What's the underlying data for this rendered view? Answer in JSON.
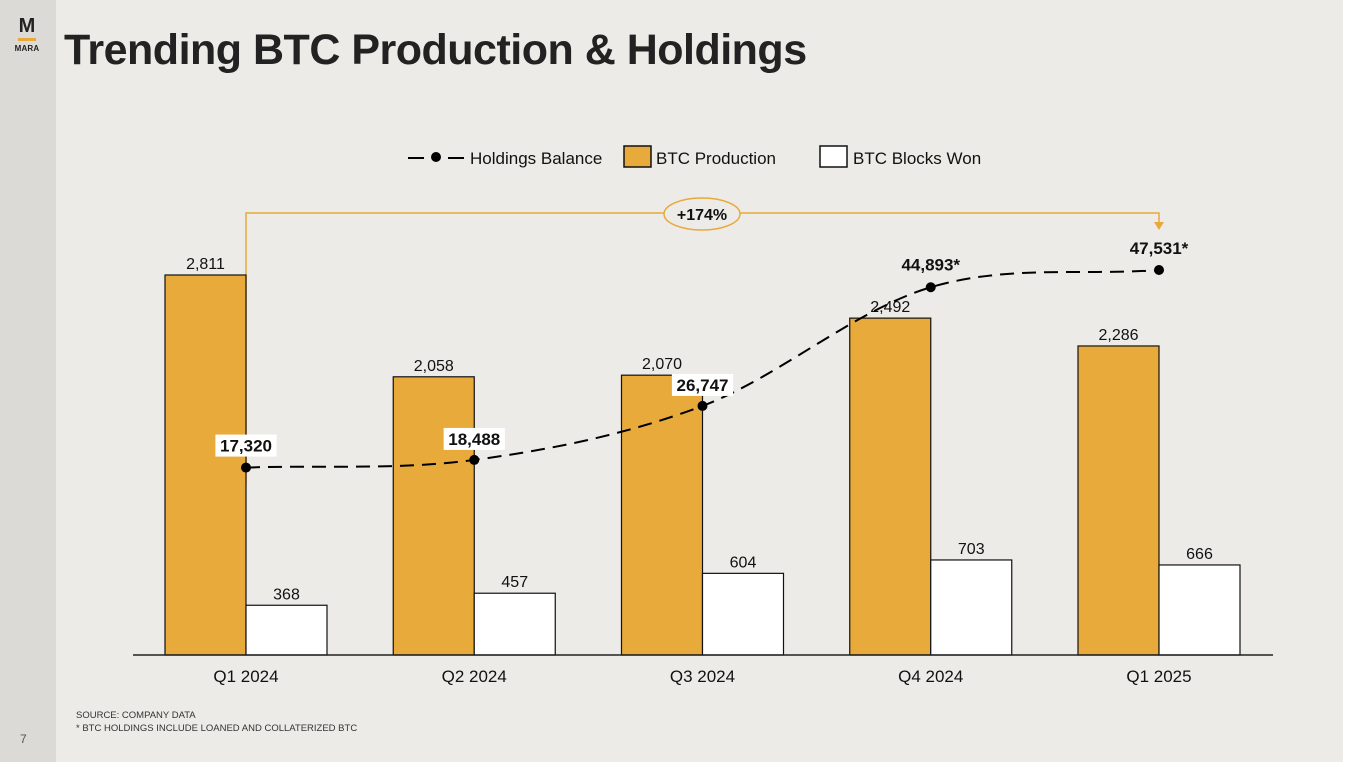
{
  "brand": {
    "logo_letter": "M",
    "logo_text": "MARA"
  },
  "page": {
    "title": "Trending BTC Production & Holdings",
    "number": "7"
  },
  "footnotes": {
    "source": "SOURCE: COMPANY DATA",
    "note": "* BTC HOLDINGS INCLUDE LOANED AND COLLATERIZED BTC"
  },
  "colors": {
    "production": "#e8ab3b",
    "blocks": "#ffffff",
    "line": "#000000",
    "accent": "#e8a93a"
  },
  "chart_data": {
    "type": "bar",
    "title": "Trending BTC Production & Holdings",
    "categories": [
      "Q1 2024",
      "Q2 2024",
      "Q3 2024",
      "Q4 2024",
      "Q1 2025"
    ],
    "series": [
      {
        "name": "BTC Production",
        "type": "bar",
        "values": [
          2811,
          2058,
          2070,
          2492,
          2286
        ],
        "labels": [
          "2,811",
          "2,058",
          "2,070",
          "2,492",
          "2,286"
        ]
      },
      {
        "name": "BTC Blocks Won",
        "type": "bar",
        "values": [
          368,
          457,
          604,
          703,
          666
        ],
        "labels": [
          "368",
          "457",
          "604",
          "703",
          "666"
        ]
      },
      {
        "name": "Holdings Balance",
        "type": "line",
        "style": "dashed",
        "values": [
          17320,
          18488,
          26747,
          44893,
          47531
        ],
        "labels": [
          "17,320",
          "18,488",
          "26,747",
          "44,893*",
          "47,531*"
        ]
      }
    ],
    "legend": [
      "Holdings Balance",
      "BTC Production",
      "BTC Blocks Won"
    ],
    "legend_position": "top-center",
    "bar_axis_range": [
      0,
      2811
    ],
    "line_axis_range": [
      -11340,
      47531
    ],
    "annotation": {
      "text": "+174%",
      "from": "Q1 2024",
      "to": "Q1 2025"
    }
  }
}
